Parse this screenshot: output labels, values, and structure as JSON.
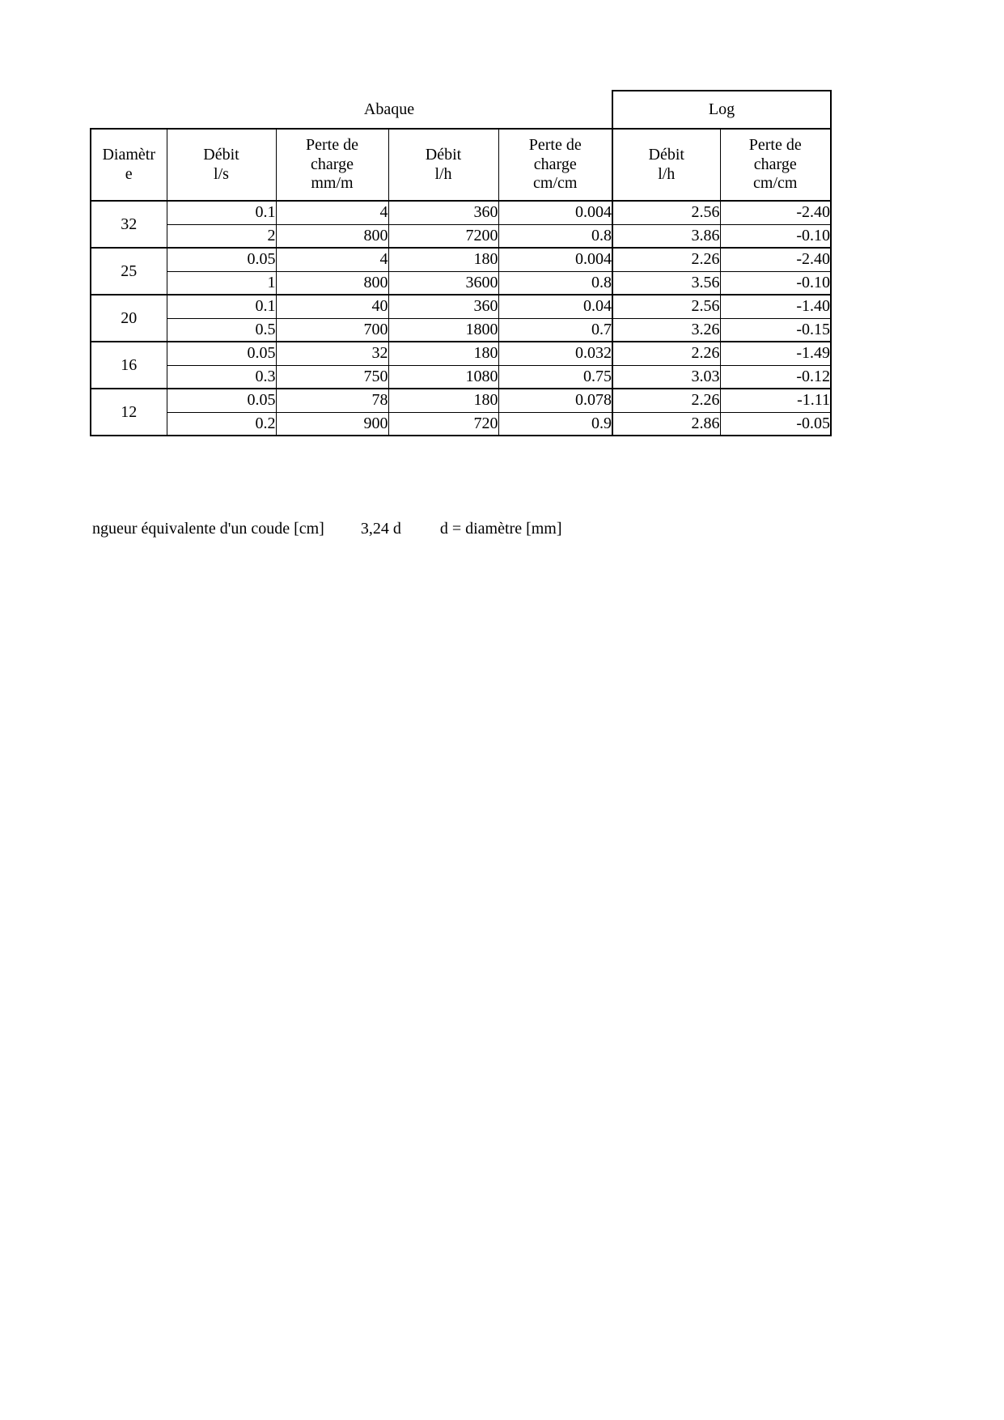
{
  "titles": {
    "abaque": "Abaque",
    "log": "Log"
  },
  "table": {
    "headers": {
      "diameter": "Diamètr\ne",
      "debit_ls": "Débit\nl/s",
      "perte_mmm": "Perte de\ncharge\nmm/m",
      "debit_lh": "Débit\nl/h",
      "perte_cmcm": "Perte de\ncharge\ncm/cm",
      "log_debit_lh": "Débit\nl/h",
      "log_perte_cmcm": "Perte de\ncharge\ncm/cm"
    },
    "groups": [
      {
        "diameter": "32",
        "r1": [
          "0.1",
          "4",
          "360",
          "0.004",
          "2.56",
          "-2.40"
        ],
        "r2": [
          "2",
          "800",
          "7200",
          "0.8",
          "3.86",
          "-0.10"
        ]
      },
      {
        "diameter": "25",
        "r1": [
          "0.05",
          "4",
          "180",
          "0.004",
          "2.26",
          "-2.40"
        ],
        "r2": [
          "1",
          "800",
          "3600",
          "0.8",
          "3.56",
          "-0.10"
        ]
      },
      {
        "diameter": "20",
        "r1": [
          "0.1",
          "40",
          "360",
          "0.04",
          "2.56",
          "-1.40"
        ],
        "r2": [
          "0.5",
          "700",
          "1800",
          "0.7",
          "3.26",
          "-0.15"
        ]
      },
      {
        "diameter": "16",
        "r1": [
          "0.05",
          "32",
          "180",
          "0.032",
          "2.26",
          "-1.49"
        ],
        "r2": [
          "0.3",
          "750",
          "1080",
          "0.75",
          "3.03",
          "-0.12"
        ]
      },
      {
        "diameter": "12",
        "r1": [
          "0.05",
          "78",
          "180",
          "0.078",
          "2.26",
          "-1.11"
        ],
        "r2": [
          "0.2",
          "900",
          "720",
          "0.9",
          "2.86",
          "-0.05"
        ]
      }
    ]
  },
  "footer": {
    "label": "ngueur équivalente d'un coude [cm]",
    "value": "3,24 d",
    "note": "d = diamètre [mm]"
  }
}
